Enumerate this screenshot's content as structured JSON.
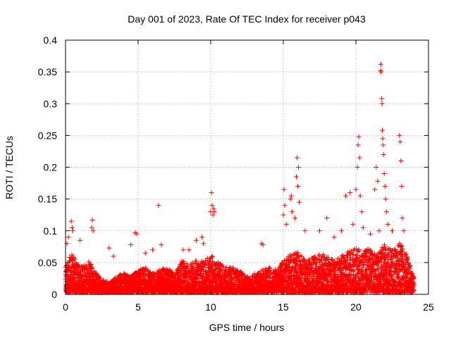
{
  "chart_data": {
    "type": "scatter",
    "title": "Day 001 of 2023, Rate Of TEC Index for receiver p043",
    "xlabel": "GPS time / hours",
    "ylabel": "ROTI / TECUs",
    "xlim": [
      0,
      25
    ],
    "ylim": [
      0,
      0.4
    ],
    "xticks": [
      0,
      5,
      10,
      15,
      20,
      25
    ],
    "yticks": [
      0,
      0.05,
      0.1,
      0.15,
      0.2,
      0.25,
      0.3,
      0.35,
      0.4
    ],
    "xtick_labels": [
      "0",
      "5",
      "10",
      "15",
      "20",
      "25"
    ],
    "ytick_labels": [
      "0",
      "0.05",
      "0.1",
      "0.15",
      "0.2",
      "0.25",
      "0.3",
      "0.35",
      "0.4"
    ],
    "grid": true,
    "marker": "+",
    "color": "#ff0000",
    "series": [
      {
        "name": "ROTI",
        "envelope": {
          "x": [
            0.0,
            0.3,
            0.5,
            1.0,
            1.6,
            2.0,
            2.5,
            3.0,
            3.5,
            4.0,
            4.5,
            5.0,
            5.5,
            6.0,
            6.5,
            7.0,
            7.5,
            8.0,
            8.5,
            9.0,
            9.5,
            10.0,
            10.5,
            11.0,
            11.5,
            12.0,
            12.5,
            13.0,
            13.5,
            14.0,
            14.5,
            15.0,
            15.5,
            16.0,
            16.5,
            17.0,
            17.5,
            18.0,
            18.5,
            19.0,
            19.5,
            20.0,
            20.5,
            21.0,
            21.5,
            22.0,
            22.5,
            23.0,
            23.5,
            24.0
          ],
          "peak": [
            0.04,
            0.06,
            0.06,
            0.04,
            0.05,
            0.035,
            0.02,
            0.015,
            0.025,
            0.03,
            0.025,
            0.035,
            0.04,
            0.03,
            0.035,
            0.04,
            0.03,
            0.05,
            0.045,
            0.05,
            0.05,
            0.06,
            0.05,
            0.04,
            0.04,
            0.035,
            0.025,
            0.03,
            0.035,
            0.04,
            0.035,
            0.05,
            0.06,
            0.065,
            0.05,
            0.055,
            0.06,
            0.06,
            0.05,
            0.06,
            0.065,
            0.07,
            0.065,
            0.07,
            0.06,
            0.08,
            0.07,
            0.08,
            0.06,
            0.025
          ]
        },
        "outliers": [
          {
            "x": 0.1,
            "y": 0.08
          },
          {
            "x": 0.2,
            "y": 0.09
          },
          {
            "x": 0.4,
            "y": 0.115
          },
          {
            "x": 0.45,
            "y": 0.105
          },
          {
            "x": 0.5,
            "y": 0.1
          },
          {
            "x": 1.0,
            "y": 0.085
          },
          {
            "x": 1.8,
            "y": 0.105
          },
          {
            "x": 1.85,
            "y": 0.117
          },
          {
            "x": 1.9,
            "y": 0.1
          },
          {
            "x": 3.0,
            "y": 0.073
          },
          {
            "x": 3.3,
            "y": 0.06
          },
          {
            "x": 4.5,
            "y": 0.078
          },
          {
            "x": 4.8,
            "y": 0.097
          },
          {
            "x": 4.9,
            "y": 0.095
          },
          {
            "x": 5.5,
            "y": 0.065
          },
          {
            "x": 6.0,
            "y": 0.07
          },
          {
            "x": 6.4,
            "y": 0.14
          },
          {
            "x": 6.6,
            "y": 0.078
          },
          {
            "x": 8.1,
            "y": 0.07
          },
          {
            "x": 8.5,
            "y": 0.07
          },
          {
            "x": 9.0,
            "y": 0.085
          },
          {
            "x": 9.4,
            "y": 0.09
          },
          {
            "x": 9.5,
            "y": 0.08
          },
          {
            "x": 10.0,
            "y": 0.13
          },
          {
            "x": 10.05,
            "y": 0.16
          },
          {
            "x": 10.1,
            "y": 0.14
          },
          {
            "x": 10.15,
            "y": 0.125
          },
          {
            "x": 10.2,
            "y": 0.135
          },
          {
            "x": 10.25,
            "y": 0.13
          },
          {
            "x": 13.5,
            "y": 0.08
          },
          {
            "x": 13.6,
            "y": 0.078
          },
          {
            "x": 15.0,
            "y": 0.125
          },
          {
            "x": 15.05,
            "y": 0.165
          },
          {
            "x": 15.1,
            "y": 0.14
          },
          {
            "x": 15.2,
            "y": 0.11
          },
          {
            "x": 15.5,
            "y": 0.15
          },
          {
            "x": 15.55,
            "y": 0.155
          },
          {
            "x": 15.6,
            "y": 0.13
          },
          {
            "x": 15.8,
            "y": 0.12
          },
          {
            "x": 15.9,
            "y": 0.185
          },
          {
            "x": 15.95,
            "y": 0.215
          },
          {
            "x": 16.0,
            "y": 0.17
          },
          {
            "x": 16.05,
            "y": 0.2
          },
          {
            "x": 16.1,
            "y": 0.145
          },
          {
            "x": 16.5,
            "y": 0.1
          },
          {
            "x": 17.5,
            "y": 0.1
          },
          {
            "x": 18.0,
            "y": 0.12
          },
          {
            "x": 18.5,
            "y": 0.09
          },
          {
            "x": 19.0,
            "y": 0.1
          },
          {
            "x": 19.3,
            "y": 0.155
          },
          {
            "x": 19.6,
            "y": 0.16
          },
          {
            "x": 19.8,
            "y": 0.11
          },
          {
            "x": 20.0,
            "y": 0.165
          },
          {
            "x": 20.1,
            "y": 0.2
          },
          {
            "x": 20.15,
            "y": 0.235
          },
          {
            "x": 20.2,
            "y": 0.248
          },
          {
            "x": 20.25,
            "y": 0.215
          },
          {
            "x": 20.3,
            "y": 0.155
          },
          {
            "x": 20.4,
            "y": 0.13
          },
          {
            "x": 20.5,
            "y": 0.105
          },
          {
            "x": 21.0,
            "y": 0.095
          },
          {
            "x": 21.3,
            "y": 0.165
          },
          {
            "x": 21.4,
            "y": 0.2
          },
          {
            "x": 21.5,
            "y": 0.178
          },
          {
            "x": 21.6,
            "y": 0.1
          },
          {
            "x": 21.7,
            "y": 0.352
          },
          {
            "x": 21.72,
            "y": 0.362
          },
          {
            "x": 21.74,
            "y": 0.35
          },
          {
            "x": 21.78,
            "y": 0.308
          },
          {
            "x": 21.8,
            "y": 0.3
          },
          {
            "x": 21.82,
            "y": 0.258
          },
          {
            "x": 21.85,
            "y": 0.245
          },
          {
            "x": 21.88,
            "y": 0.235
          },
          {
            "x": 21.9,
            "y": 0.22
          },
          {
            "x": 21.95,
            "y": 0.19
          },
          {
            "x": 22.0,
            "y": 0.17
          },
          {
            "x": 22.05,
            "y": 0.15
          },
          {
            "x": 22.1,
            "y": 0.13
          },
          {
            "x": 22.2,
            "y": 0.11
          },
          {
            "x": 22.5,
            "y": 0.1
          },
          {
            "x": 23.0,
            "y": 0.25
          },
          {
            "x": 23.05,
            "y": 0.24
          },
          {
            "x": 23.1,
            "y": 0.21
          },
          {
            "x": 23.15,
            "y": 0.17
          },
          {
            "x": 23.2,
            "y": 0.12
          },
          {
            "x": 23.3,
            "y": 0.1
          }
        ]
      }
    ]
  }
}
